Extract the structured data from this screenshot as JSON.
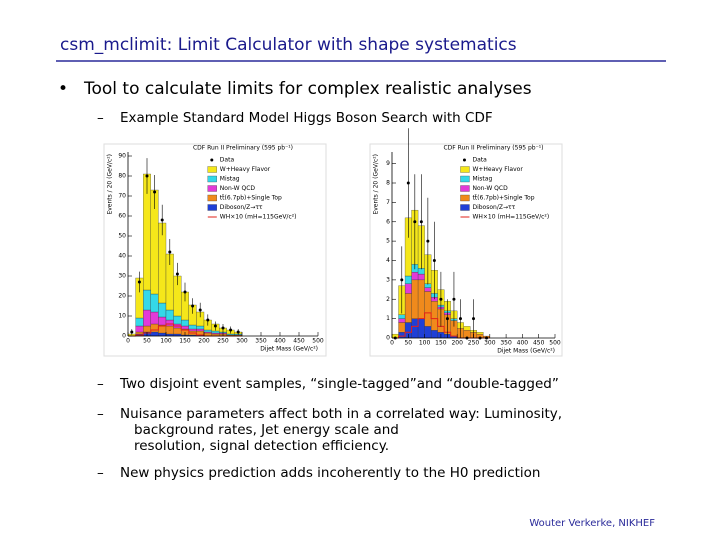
{
  "title": "csm_mclimit: Limit Calculator with shape systematics",
  "bullet": "Tool to calculate limits for complex realistic analyses",
  "sub_top": "Example Standard Model Higgs Boson Search with CDF",
  "items": [
    [
      "Two disjoint event samples, “single-tagged”and “double-tagged”"
    ],
    [
      "Nuisance parameters affect both in a correlated way: Luminosity,",
      "background rates, Jet energy scale and",
      "resolution, signal detection efficiency."
    ],
    [
      "New physics prediction adds incoherently to the H0 prediction"
    ]
  ],
  "footer": "Wouter Verkerke, NIKHEF",
  "chart_data": [
    {
      "type": "stacked_histogram",
      "title": "CDF Run II Preliminary (595 pb⁻¹)",
      "xlabel": "Dijet Mass (GeV/c²)",
      "ylabel": "Events / 20 (GeV/c²)",
      "bins": [
        0,
        20,
        40,
        60,
        80,
        100,
        120,
        140,
        160,
        180,
        200,
        220,
        240,
        260,
        280,
        300
      ],
      "xlim": [
        0,
        500
      ],
      "xticks": [
        0,
        50,
        100,
        150,
        200,
        250,
        300,
        350,
        400,
        450,
        500
      ],
      "ylim": [
        0,
        92
      ],
      "yticks": [
        0,
        10,
        20,
        30,
        40,
        50,
        60,
        70,
        80,
        90
      ],
      "data": {
        "name": "Data",
        "values": [
          2,
          27,
          80,
          72,
          58,
          42,
          31,
          22,
          15,
          13,
          8,
          5,
          4,
          3,
          2
        ]
      },
      "series": [
        {
          "name": "Diboson/Z→ττ",
          "color": "#1f3fd6",
          "values": [
            0,
            1,
            2,
            2,
            1.5,
            1,
            1,
            0.5,
            0.5,
            0.5,
            0,
            0,
            0,
            0,
            0
          ]
        },
        {
          "name": "tt̄(6.7pb)+Single Top",
          "color": "#f08a1c",
          "values": [
            0,
            1,
            3,
            4,
            4,
            4,
            3,
            3,
            2,
            2,
            1.5,
            1,
            1,
            0.5,
            0.5
          ]
        },
        {
          "name": "Non-W QCD",
          "color": "#e23ad8",
          "values": [
            0,
            3,
            8,
            6,
            4,
            3,
            2,
            1.5,
            1,
            1,
            0.5,
            0.5,
            0.5,
            0,
            0
          ]
        },
        {
          "name": "Mistag",
          "color": "#34d8e8",
          "values": [
            0,
            4,
            10,
            9,
            7,
            5,
            4,
            3,
            2,
            1.5,
            1,
            1,
            0.5,
            0.5,
            0.5
          ]
        },
        {
          "name": "W+Heavy Flavor",
          "color": "#f5e71a",
          "values": [
            1,
            20,
            58,
            52,
            40,
            28,
            20,
            14,
            10,
            7,
            5,
            3.5,
            2,
            2,
            1
          ]
        }
      ],
      "signal": {
        "name": "WH×10 (mH=115GeV/c²)",
        "color": "#e0201a",
        "values": [
          0,
          0.5,
          1.5,
          3,
          5,
          6,
          5,
          3,
          1.5,
          0.5,
          0,
          0,
          0,
          0,
          0
        ]
      }
    },
    {
      "type": "stacked_histogram",
      "title": "CDF Run II Preliminary (595 pb⁻¹)",
      "xlabel": "Dijet Mass (GeV/c²)",
      "ylabel": "Events / 20 (GeV/c²)",
      "bins": [
        0,
        20,
        40,
        60,
        80,
        100,
        120,
        140,
        160,
        180,
        200,
        220,
        240,
        260,
        280,
        300
      ],
      "xlim": [
        0,
        500
      ],
      "xticks": [
        0,
        50,
        100,
        150,
        200,
        250,
        300,
        350,
        400,
        450,
        500
      ],
      "ylim": [
        0,
        9.6
      ],
      "yticks": [
        0,
        1,
        2,
        3,
        4,
        5,
        6,
        7,
        8,
        9
      ],
      "data": {
        "name": "Data",
        "values": [
          0,
          3,
          8,
          6,
          6,
          5,
          4,
          2,
          1,
          2,
          1,
          0,
          1,
          0,
          0
        ]
      },
      "series": [
        {
          "name": "Diboson/Z→ττ",
          "color": "#1f3fd6",
          "values": [
            0,
            0.3,
            0.8,
            1,
            1,
            0.6,
            0.4,
            0.3,
            0.2,
            0.1,
            0,
            0,
            0,
            0,
            0
          ]
        },
        {
          "name": "tt̄(6.7pb)+Single Top",
          "color": "#f08a1c",
          "values": [
            0,
            0.5,
            1.5,
            2,
            2,
            1.8,
            1.5,
            1.2,
            1,
            0.8,
            0.5,
            0.4,
            0.3,
            0.2,
            0.1
          ]
        },
        {
          "name": "Non-W QCD",
          "color": "#e23ad8",
          "values": [
            0,
            0.2,
            0.5,
            0.4,
            0.3,
            0.2,
            0.2,
            0.1,
            0.1,
            0,
            0,
            0,
            0,
            0,
            0
          ]
        },
        {
          "name": "Mistag",
          "color": "#34d8e8",
          "values": [
            0,
            0.2,
            0.4,
            0.4,
            0.3,
            0.2,
            0.2,
            0.1,
            0.1,
            0.1,
            0,
            0,
            0,
            0,
            0
          ]
        },
        {
          "name": "W+Heavy Flavor",
          "color": "#f5e71a",
          "values": [
            0.2,
            1.5,
            3,
            2.8,
            2.2,
            1.5,
            1.2,
            0.8,
            0.5,
            0.4,
            0.3,
            0.2,
            0.1,
            0.1,
            0
          ]
        }
      ],
      "signal": {
        "name": "WH×10 (mH=115GeV/c²)",
        "color": "#e0201a",
        "values": [
          0,
          0.1,
          0.3,
          0.6,
          1,
          1.3,
          1,
          0.6,
          0.3,
          0.1,
          0,
          0,
          0,
          0,
          0
        ]
      }
    }
  ]
}
